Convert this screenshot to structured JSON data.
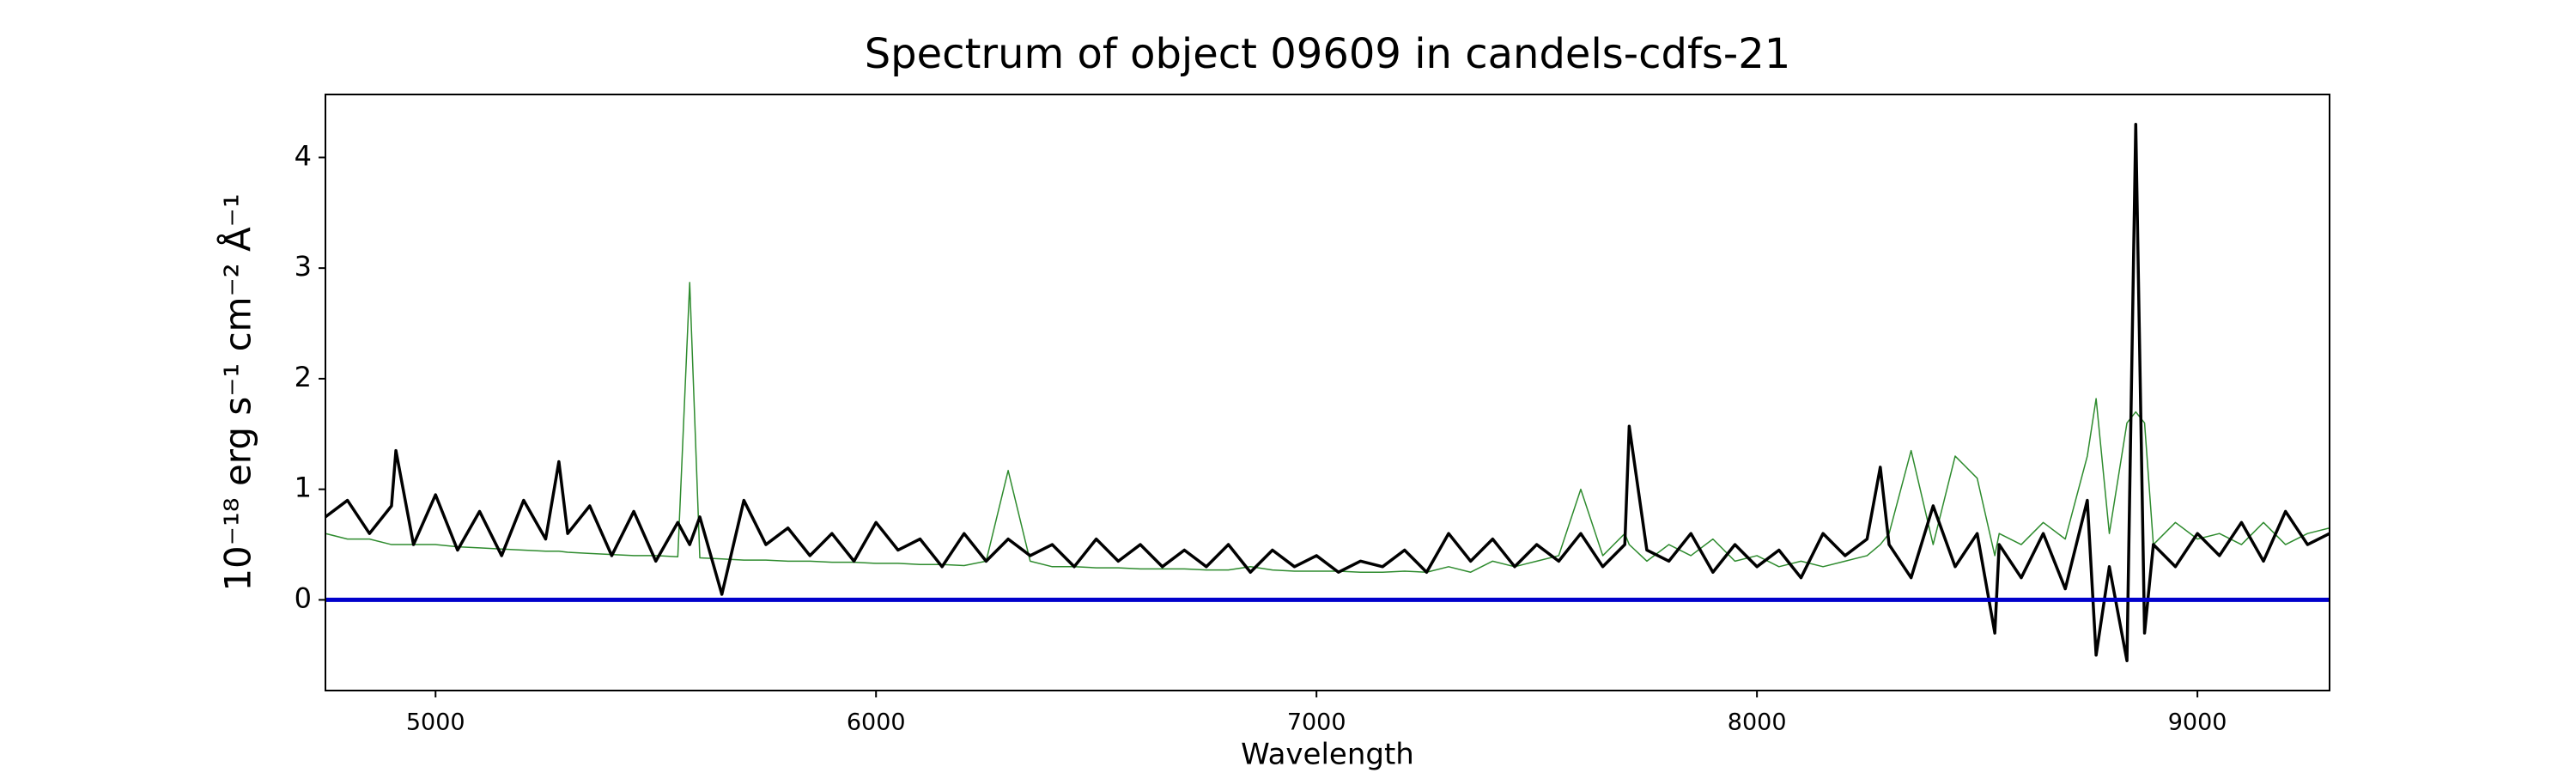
{
  "chart_data": {
    "type": "line",
    "title": "Spectrum of object 09609 in candels-cdfs-21",
    "xlabel": "Wavelength",
    "ylabel": "10⁻¹⁸ erg s⁻¹ cm⁻² Å⁻¹",
    "xlim": [
      4750,
      9300
    ],
    "ylim": [
      -0.82,
      4.57
    ],
    "xticks": [
      5000,
      6000,
      7000,
      8000,
      9000
    ],
    "yticks": [
      0,
      1,
      2,
      3,
      4
    ],
    "hlines": [
      {
        "y": 0,
        "color": "#0000cc"
      }
    ],
    "x": [
      4750,
      4800,
      4850,
      4900,
      4910,
      4950,
      5000,
      5050,
      5100,
      5150,
      5200,
      5250,
      5280,
      5300,
      5350,
      5400,
      5450,
      5500,
      5550,
      5577,
      5600,
      5650,
      5700,
      5750,
      5800,
      5850,
      5900,
      5950,
      6000,
      6050,
      6100,
      6150,
      6200,
      6250,
      6300,
      6350,
      6400,
      6450,
      6500,
      6550,
      6600,
      6650,
      6700,
      6750,
      6800,
      6850,
      6900,
      6950,
      7000,
      7050,
      7100,
      7150,
      7200,
      7250,
      7300,
      7350,
      7400,
      7450,
      7500,
      7550,
      7600,
      7650,
      7700,
      7710,
      7750,
      7800,
      7850,
      7900,
      7950,
      8000,
      8050,
      8100,
      8150,
      8200,
      8250,
      8280,
      8300,
      8350,
      8400,
      8450,
      8500,
      8540,
      8550,
      8600,
      8650,
      8700,
      8750,
      8770,
      8800,
      8840,
      8860,
      8880,
      8900,
      8950,
      9000,
      9050,
      9100,
      9150,
      9200,
      9250,
      9300
    ],
    "series": [
      {
        "color": "#2e8b2e",
        "width": 1.5,
        "values": [
          0.6,
          0.55,
          0.55,
          0.5,
          0.5,
          0.5,
          0.5,
          0.48,
          0.47,
          0.46,
          0.45,
          0.44,
          0.44,
          0.43,
          0.42,
          0.41,
          0.4,
          0.4,
          0.39,
          2.87,
          0.38,
          0.37,
          0.36,
          0.36,
          0.35,
          0.35,
          0.34,
          0.34,
          0.33,
          0.33,
          0.32,
          0.32,
          0.31,
          0.35,
          1.17,
          0.35,
          0.3,
          0.3,
          0.29,
          0.29,
          0.28,
          0.28,
          0.28,
          0.27,
          0.27,
          0.3,
          0.27,
          0.26,
          0.26,
          0.26,
          0.25,
          0.25,
          0.26,
          0.25,
          0.3,
          0.25,
          0.35,
          0.3,
          0.35,
          0.4,
          1.0,
          0.4,
          0.6,
          0.5,
          0.35,
          0.5,
          0.4,
          0.55,
          0.35,
          0.4,
          0.3,
          0.35,
          0.3,
          0.35,
          0.4,
          0.5,
          0.6,
          1.35,
          0.5,
          1.3,
          1.1,
          0.4,
          0.6,
          0.5,
          0.7,
          0.55,
          1.3,
          1.82,
          0.6,
          1.6,
          1.7,
          1.6,
          0.5,
          0.7,
          0.55,
          0.6,
          0.5,
          0.7,
          0.5,
          0.6,
          0.65
        ]
      },
      {
        "color": "#000000",
        "width": 3.5,
        "values": [
          0.75,
          0.9,
          0.6,
          0.85,
          1.35,
          0.5,
          0.95,
          0.45,
          0.8,
          0.4,
          0.9,
          0.55,
          1.25,
          0.6,
          0.85,
          0.4,
          0.8,
          0.35,
          0.7,
          0.5,
          0.75,
          0.05,
          0.9,
          0.5,
          0.65,
          0.4,
          0.6,
          0.35,
          0.7,
          0.45,
          0.55,
          0.3,
          0.6,
          0.35,
          0.55,
          0.4,
          0.5,
          0.3,
          0.55,
          0.35,
          0.5,
          0.3,
          0.45,
          0.3,
          0.5,
          0.25,
          0.45,
          0.3,
          0.4,
          0.25,
          0.35,
          0.3,
          0.45,
          0.25,
          0.6,
          0.35,
          0.55,
          0.3,
          0.5,
          0.35,
          0.6,
          0.3,
          0.5,
          1.57,
          0.45,
          0.35,
          0.6,
          0.25,
          0.5,
          0.3,
          0.45,
          0.2,
          0.6,
          0.4,
          0.55,
          1.2,
          0.5,
          0.2,
          0.85,
          0.3,
          0.6,
          -0.3,
          0.5,
          0.2,
          0.6,
          0.1,
          0.9,
          -0.5,
          0.3,
          -0.55,
          4.3,
          -0.3,
          0.5,
          0.3,
          0.6,
          0.4,
          0.7,
          0.35,
          0.8,
          0.5,
          0.6
        ]
      }
    ]
  }
}
